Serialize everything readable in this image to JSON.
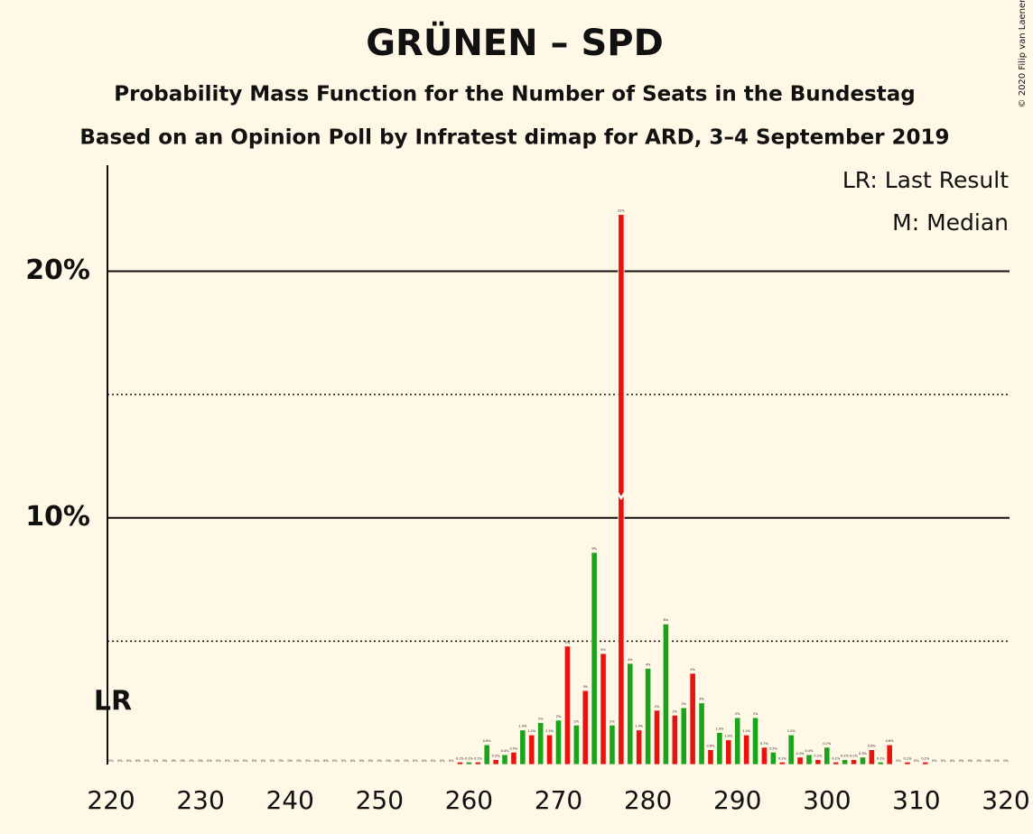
{
  "chart_data": {
    "type": "bar",
    "title": "GRÜNEN – SPD",
    "subtitle": "Probability Mass Function for the Number of Seats in the Bundestag",
    "subtitle2": "Based on an Opinion Poll by Infratest dimap for ARD, 3–4 September 2019",
    "copyright": "© 2020 Filip van Laenen",
    "legend_lr": "LR: Last Result",
    "legend_median": "M: Median",
    "lr_label": "LR",
    "last_result": 220,
    "median": 277,
    "colors": [
      "#1ba31b",
      "#e8130f"
    ],
    "x": [
      220,
      221,
      222,
      223,
      224,
      225,
      226,
      227,
      228,
      229,
      230,
      231,
      232,
      233,
      234,
      235,
      236,
      237,
      238,
      239,
      240,
      241,
      242,
      243,
      244,
      245,
      246,
      247,
      248,
      249,
      250,
      251,
      252,
      253,
      254,
      255,
      256,
      257,
      258,
      259,
      260,
      261,
      262,
      263,
      264,
      265,
      266,
      267,
      268,
      269,
      270,
      271,
      272,
      273,
      274,
      275,
      276,
      277,
      278,
      279,
      280,
      281,
      282,
      283,
      284,
      285,
      286,
      287,
      288,
      289,
      290,
      291,
      292,
      293,
      294,
      295,
      296,
      297,
      298,
      299,
      300,
      301,
      302,
      303,
      304,
      305,
      306,
      307,
      308,
      309,
      310,
      311,
      312,
      313,
      314,
      315,
      316,
      317,
      318,
      319,
      320
    ],
    "values": [
      0,
      0,
      0,
      0,
      0,
      0,
      0,
      0,
      0,
      0,
      0,
      0,
      0,
      0,
      0,
      0,
      0,
      0,
      0,
      0,
      0,
      0,
      0,
      0,
      0,
      0,
      0,
      0,
      0,
      0,
      0,
      0,
      0,
      0,
      0,
      0,
      0,
      0,
      0,
      0.1,
      0.1,
      0.1,
      0.8,
      0.2,
      0.4,
      0.5,
      1.4,
      1.2,
      1.7,
      1.2,
      1.8,
      4.8,
      1.6,
      3.0,
      8.6,
      4.5,
      1.6,
      22.3,
      4.1,
      1.4,
      3.9,
      2.2,
      5.7,
      2.0,
      2.3,
      3.7,
      2.5,
      0.6,
      1.3,
      1.0,
      1.9,
      1.2,
      1.9,
      0.7,
      0.5,
      0.1,
      1.2,
      0.3,
      0.4,
      0.2,
      0.7,
      0.1,
      0.2,
      0.2,
      0.3,
      0.6,
      0.1,
      0.8,
      0,
      0.1,
      0,
      0.1,
      0,
      0,
      0,
      0,
      0,
      0,
      0,
      0,
      0
    ],
    "value_labels": [
      "0%",
      "0%",
      "0%",
      "0%",
      "0%",
      "0%",
      "0%",
      "0%",
      "0%",
      "0%",
      "0%",
      "0%",
      "0%",
      "0%",
      "0%",
      "0%",
      "0%",
      "0%",
      "0%",
      "0%",
      "0%",
      "0%",
      "0%",
      "0%",
      "0%",
      "0%",
      "0%",
      "0%",
      "0%",
      "0%",
      "0%",
      "0%",
      "0%",
      "0%",
      "0%",
      "0%",
      "0%",
      "0%",
      "0%",
      "0.1%",
      "0.1%",
      "0.1%",
      "0.8%",
      "0.2%",
      "0.4%",
      "0.5%",
      "1.4%",
      "1.2%",
      "2%",
      "1.2%",
      "2%",
      "5%",
      "2%",
      "3%",
      "9%",
      "5%",
      "2%",
      "22%",
      "4%",
      "1.4%",
      "4%",
      "2%",
      "6%",
      "2%",
      "2%",
      "4%",
      "3%",
      "0.6%",
      "1.3%",
      "1.0%",
      "2%",
      "1.2%",
      "2%",
      "0.7%",
      "0.5%",
      "0.1%",
      "1.2%",
      "0.3%",
      "0.4%",
      "0.2%",
      "0.7%",
      "0.1%",
      "0.2%",
      "0.2%",
      "0.3%",
      "0.6%",
      "0.1%",
      "0.8%",
      "0%",
      "0.1%",
      "0%",
      "0.1%",
      "0%",
      "0%",
      "0%",
      "0%",
      "0%",
      "0%",
      "0%",
      "0%",
      "0%"
    ],
    "xlim": [
      220,
      320
    ],
    "xticks": [
      220,
      230,
      240,
      250,
      260,
      270,
      280,
      290,
      300,
      310,
      320
    ],
    "ylim": [
      0,
      24.3
    ],
    "yticks": [
      {
        "value": 10,
        "label": "10%"
      },
      {
        "value": 20,
        "label": "20%"
      }
    ],
    "minor_yticks": [
      5,
      15
    ]
  }
}
